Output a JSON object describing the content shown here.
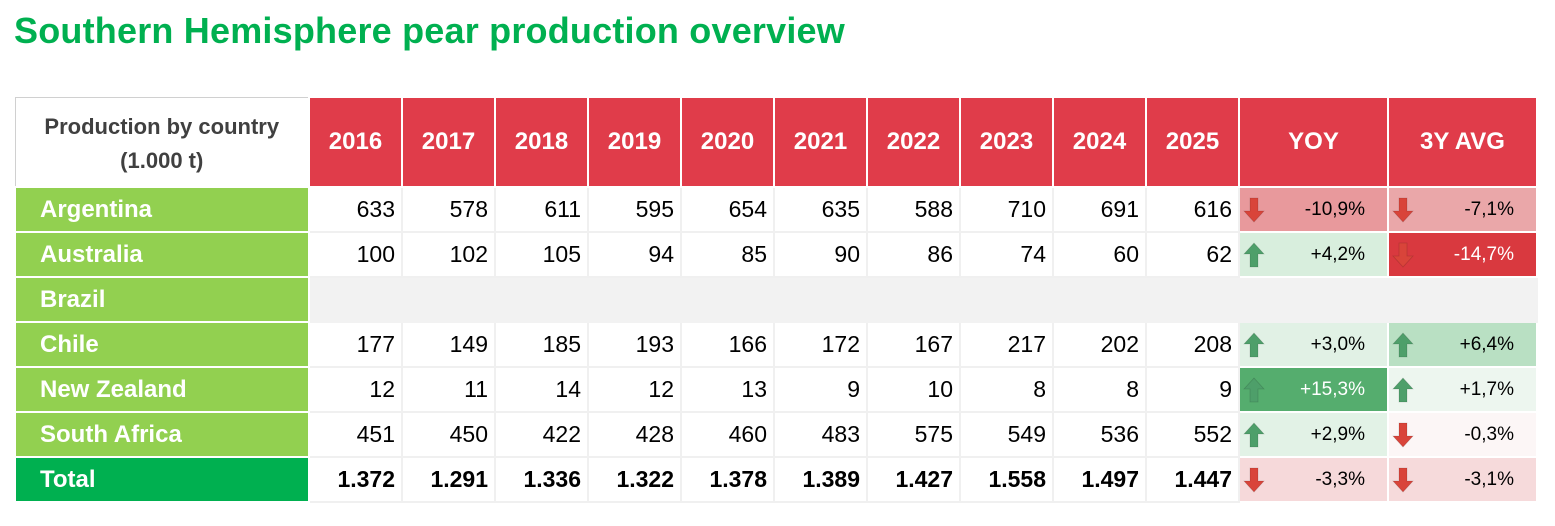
{
  "title": "Southern Hemisphere pear production overview",
  "chart_data": {
    "type": "table",
    "header": {
      "corner_line1": "Production by country",
      "corner_line2": "(1.000 t)",
      "years": [
        "2016",
        "2017",
        "2018",
        "2019",
        "2020",
        "2021",
        "2022",
        "2023",
        "2024",
        "2025"
      ],
      "yoy_label": "YOY",
      "avg_label": "3Y AVG"
    },
    "rows": [
      {
        "country": "Argentina",
        "values": [
          "633",
          "578",
          "611",
          "595",
          "654",
          "635",
          "588",
          "710",
          "691",
          "616"
        ],
        "yoy": {
          "text": "-10,9%",
          "dir": "down",
          "bg": "#e8999c"
        },
        "avg": {
          "text": "-7,1%",
          "dir": "down",
          "bg": "#eaa7a9"
        }
      },
      {
        "country": "Australia",
        "values": [
          "100",
          "102",
          "105",
          "94",
          "85",
          "90",
          "86",
          "74",
          "60",
          "62"
        ],
        "yoy": {
          "text": "+4,2%",
          "dir": "up",
          "bg": "#d8eedd"
        },
        "avg": {
          "text": "-14,7%",
          "dir": "down",
          "bg": "#d9393f",
          "light": true
        }
      },
      {
        "country": "Brazil",
        "values": [],
        "yoy": null,
        "avg": null
      },
      {
        "country": "Chile",
        "values": [
          "177",
          "149",
          "185",
          "193",
          "166",
          "172",
          "167",
          "217",
          "202",
          "208"
        ],
        "yoy": {
          "text": "+3,0%",
          "dir": "up",
          "bg": "#e1f1e5"
        },
        "avg": {
          "text": "+6,4%",
          "dir": "up",
          "bg": "#b9e0c3"
        }
      },
      {
        "country": "New Zealand",
        "values": [
          "12",
          "11",
          "14",
          "12",
          "13",
          "9",
          "10",
          "8",
          "8",
          "9"
        ],
        "yoy": {
          "text": "+15,3%",
          "dir": "up",
          "bg": "#55ad6e",
          "light": true
        },
        "avg": {
          "text": "+1,7%",
          "dir": "up",
          "bg": "#edf6ef"
        }
      },
      {
        "country": "South Africa",
        "values": [
          "451",
          "450",
          "422",
          "428",
          "460",
          "483",
          "575",
          "549",
          "536",
          "552"
        ],
        "yoy": {
          "text": "+2,9%",
          "dir": "up",
          "bg": "#e2f2e6"
        },
        "avg": {
          "text": "-0,3%",
          "dir": "down",
          "bg": "#fcf6f6"
        }
      },
      {
        "country": "Total",
        "total": true,
        "values": [
          "1.372",
          "1.291",
          "1.336",
          "1.322",
          "1.378",
          "1.389",
          "1.427",
          "1.558",
          "1.497",
          "1.447"
        ],
        "yoy": {
          "text": "-3,3%",
          "dir": "down",
          "bg": "#f6d9da"
        },
        "avg": {
          "text": "-3,1%",
          "dir": "down",
          "bg": "#f6dadb"
        }
      }
    ]
  },
  "colors": {
    "title": "#00b050",
    "header_red": "#e03c4a",
    "country_green": "#92d050",
    "total_green": "#00b050",
    "arrow_up": "#4e9f6a",
    "arrow_down": "#d9443a"
  }
}
